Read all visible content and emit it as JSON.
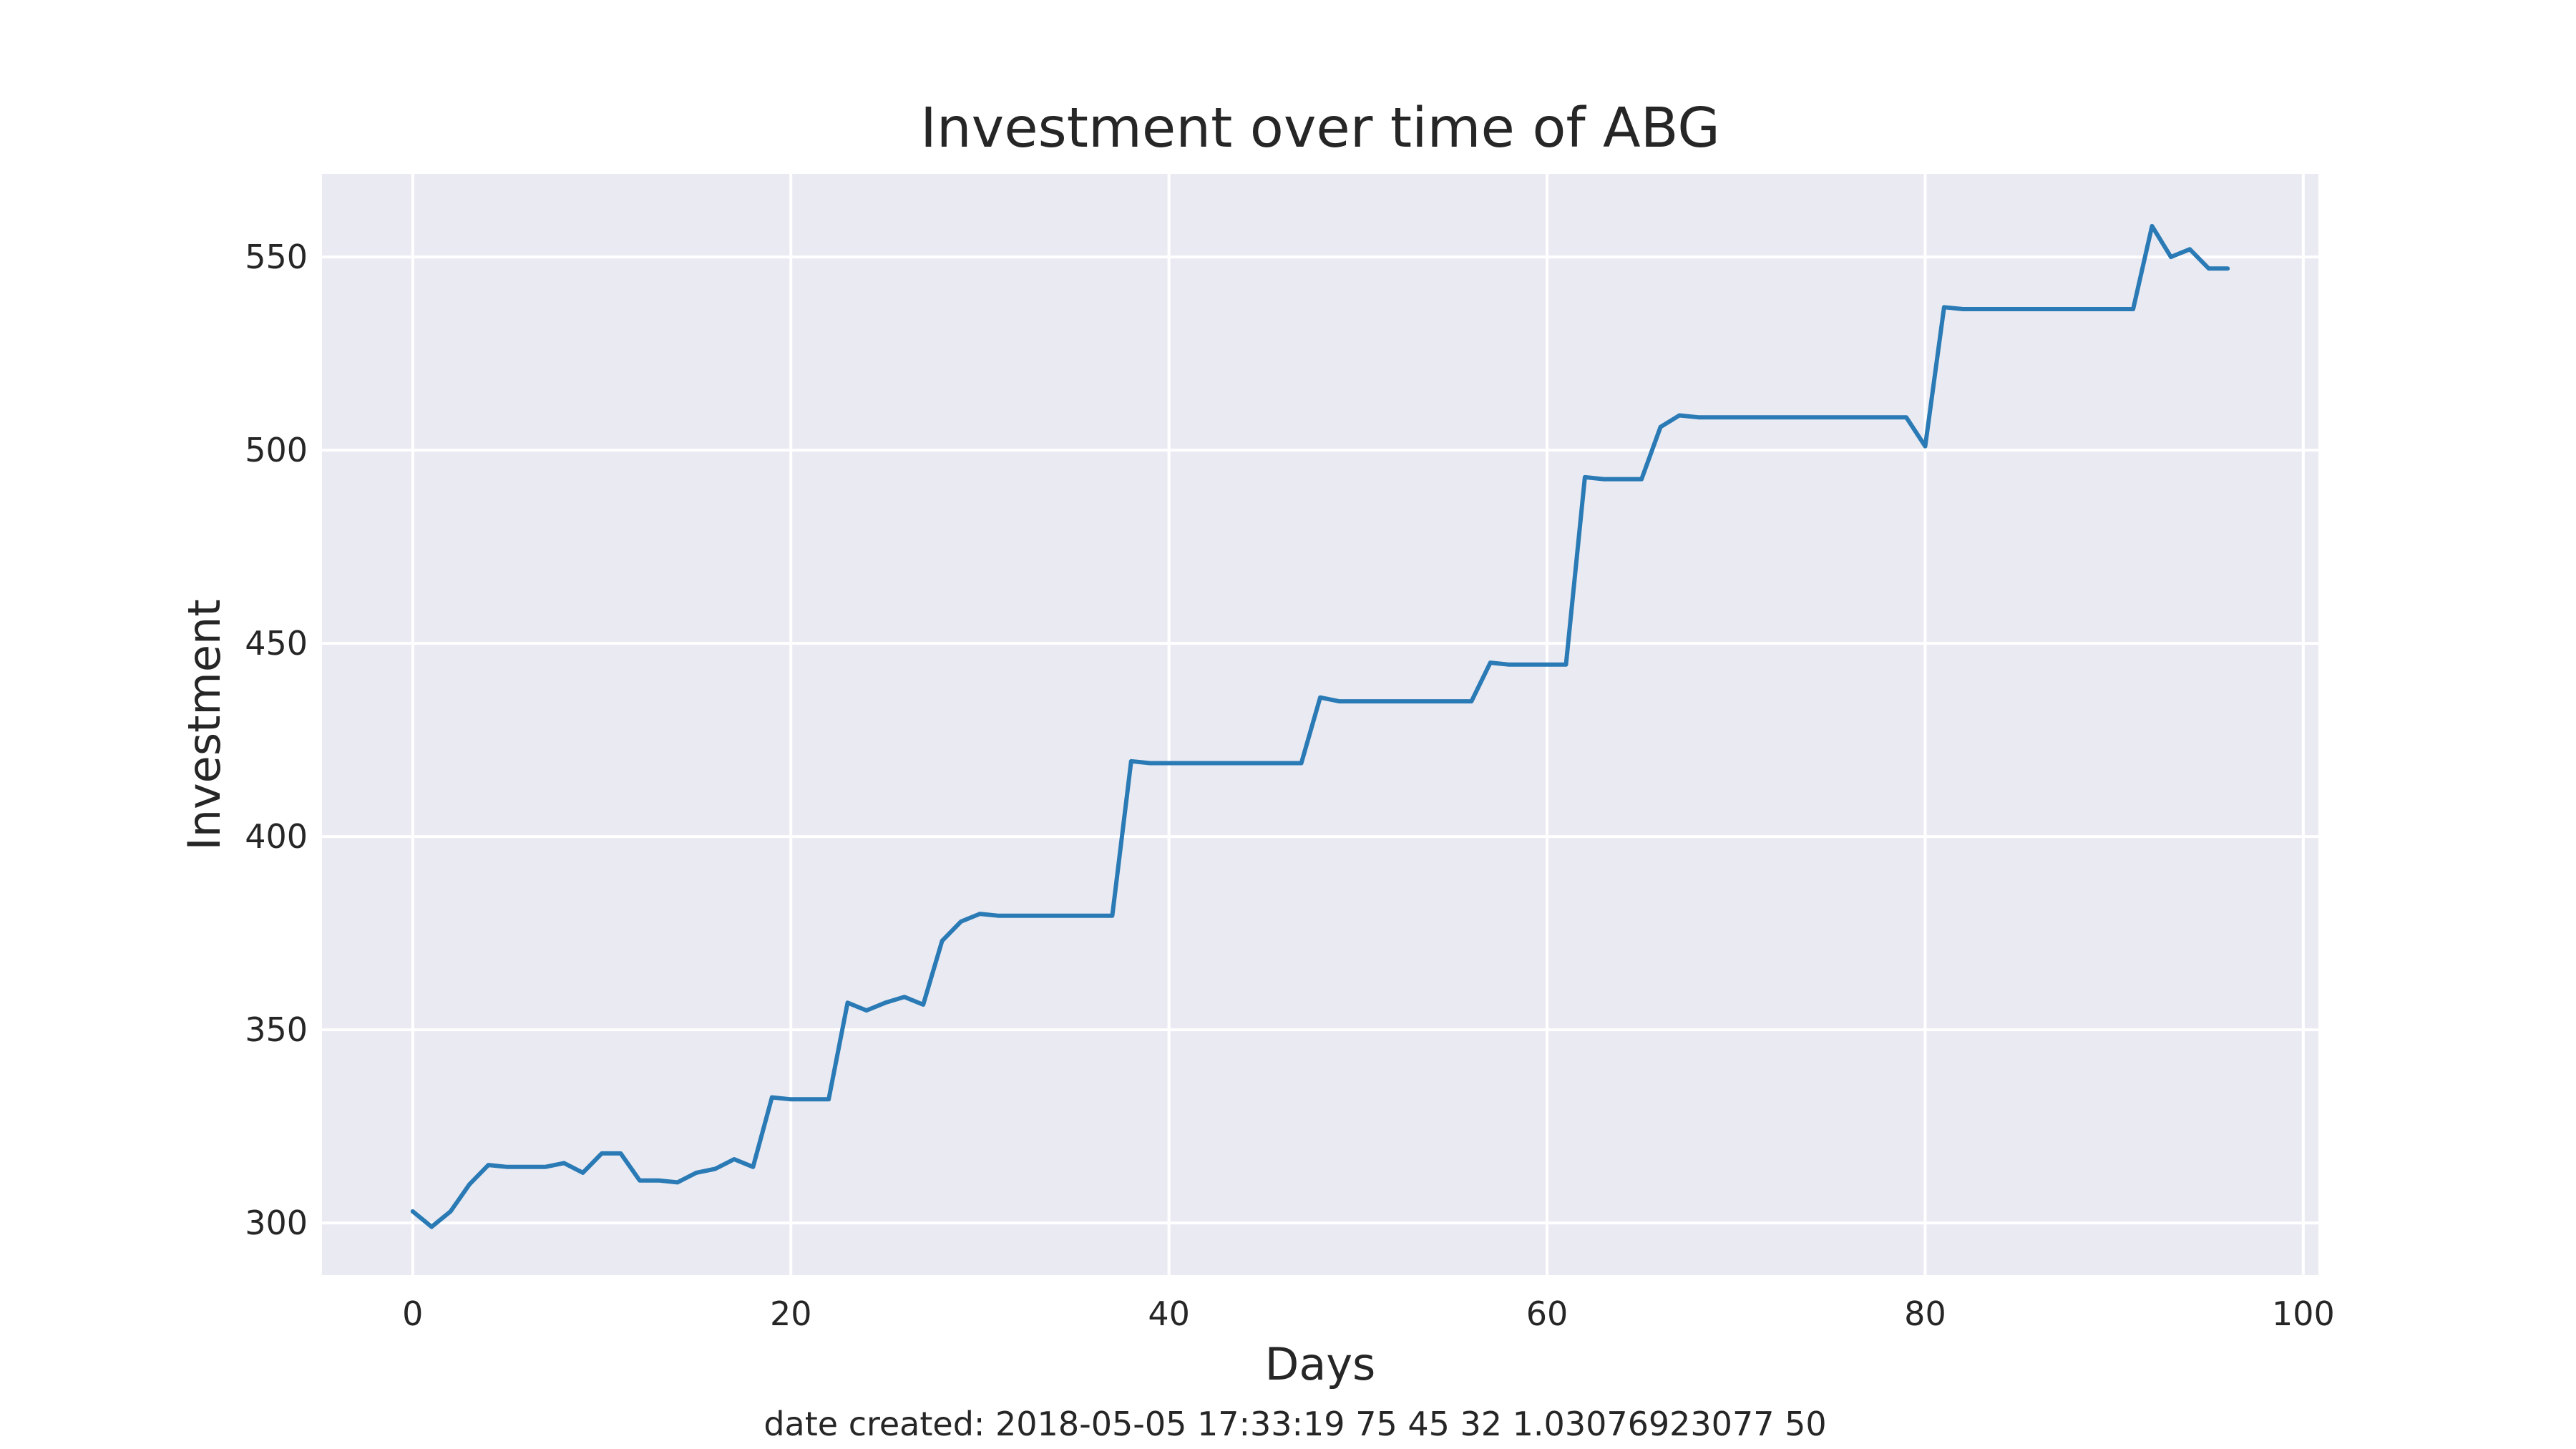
{
  "chart_data": {
    "type": "line",
    "title": "Investment over time of ABG",
    "xlabel": "Days",
    "ylabel": "Investment",
    "footer": "date created: 2018-05-05 17:33:19 75 45 32 1.03076923077 50",
    "xlim": [
      -4.8,
      100.8
    ],
    "ylim": [
      286.5,
      571.5
    ],
    "x_ticks": [
      0,
      20,
      40,
      60,
      80,
      100
    ],
    "x_tick_labels": [
      "0",
      "20",
      "40",
      "60",
      "80",
      "100"
    ],
    "y_ticks": [
      300,
      350,
      400,
      450,
      500,
      550
    ],
    "y_tick_labels": [
      "300",
      "350",
      "400",
      "450",
      "500",
      "550"
    ],
    "grid": true,
    "colors": {
      "background": "#eaeaf2",
      "grid": "#ffffff",
      "line": "#2a7ab5"
    },
    "series": [
      {
        "x": [
          0,
          1,
          2,
          3,
          4,
          5,
          6,
          7,
          8,
          9,
          10,
          11,
          12,
          13,
          14,
          15,
          16,
          17,
          18,
          19,
          20,
          21,
          22,
          23,
          24,
          25,
          26,
          27,
          28,
          29,
          30,
          31,
          32,
          33,
          34,
          35,
          36,
          37,
          38,
          39,
          40,
          41,
          42,
          43,
          44,
          45,
          46,
          47,
          48,
          49,
          50,
          51,
          52,
          53,
          54,
          55,
          56,
          57,
          58,
          59,
          60,
          61,
          62,
          63,
          64,
          65,
          66,
          67,
          68,
          69,
          70,
          71,
          72,
          73,
          74,
          75,
          76,
          77,
          78,
          79,
          80,
          81,
          82,
          83,
          84,
          85,
          86,
          87,
          88,
          89,
          90,
          91,
          92,
          93,
          94,
          95,
          96
        ],
        "values": [
          303,
          299,
          303,
          310,
          315,
          314.5,
          314.5,
          314.5,
          315.5,
          313,
          318,
          318,
          311,
          311,
          310.5,
          313,
          314,
          316.5,
          314.5,
          332.5,
          332,
          332,
          332,
          357,
          355,
          357,
          358.5,
          356.5,
          373,
          378,
          380,
          379.5,
          379.5,
          379.5,
          379.5,
          379.5,
          379.5,
          379.5,
          419.5,
          419,
          419,
          419,
          419,
          419,
          419,
          419,
          419,
          419,
          436,
          435,
          435,
          435,
          435,
          435,
          435,
          435,
          435,
          445,
          444.5,
          444.5,
          444.5,
          444.5,
          493,
          492.5,
          492.5,
          492.5,
          506,
          509,
          508.5,
          508.5,
          508.5,
          508.5,
          508.5,
          508.5,
          508.5,
          508.5,
          508.5,
          508.5,
          508.5,
          508.5,
          501,
          537,
          536.5,
          536.5,
          536.5,
          536.5,
          536.5,
          536.5,
          536.5,
          536.5,
          536.5,
          536.5,
          558,
          550,
          552,
          547,
          547
        ]
      }
    ]
  }
}
